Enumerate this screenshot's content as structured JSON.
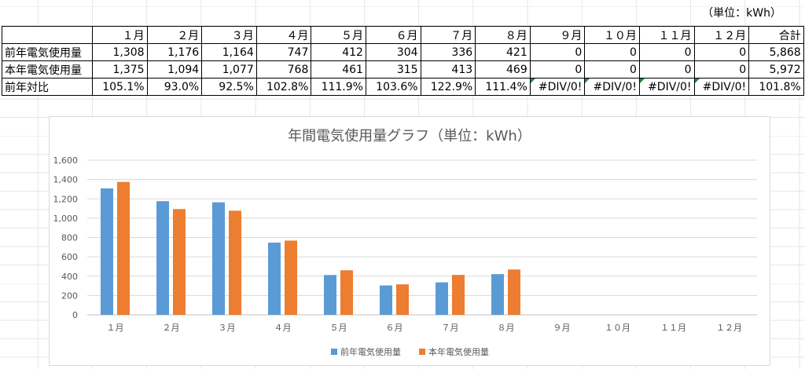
{
  "unit_label": "（単位：kWh）",
  "table": {
    "months": [
      "１月",
      "２月",
      "３月",
      "４月",
      "５月",
      "６月",
      "７月",
      "８月",
      "９月",
      "１０月",
      "１１月",
      "１２月"
    ],
    "total_label": "合計",
    "rows": [
      {
        "label": "前年電気使用量",
        "values": [
          "1,308",
          "1,176",
          "1,164",
          "747",
          "412",
          "304",
          "336",
          "421",
          "0",
          "0",
          "0",
          "0"
        ],
        "total": "5,868"
      },
      {
        "label": "本年電気使用量",
        "values": [
          "1,375",
          "1,094",
          "1,077",
          "768",
          "461",
          "315",
          "413",
          "469",
          "0",
          "0",
          "0",
          "0"
        ],
        "total": "5,972"
      },
      {
        "label": "前年対比",
        "values": [
          "105.1%",
          "93.0%",
          "92.5%",
          "102.8%",
          "111.9%",
          "103.6%",
          "122.9%",
          "111.4%",
          "#DIV/0!",
          "#DIV/0!",
          "#DIV/0!",
          "#DIV/0!"
        ],
        "total": "101.8%"
      }
    ]
  },
  "chart_data": {
    "type": "bar",
    "title": "年間電気使用量グラフ（単位：kWh）",
    "categories": [
      "１月",
      "２月",
      "３月",
      "４月",
      "５月",
      "６月",
      "７月",
      "８月",
      "９月",
      "１０月",
      "１１月",
      "１２月"
    ],
    "series": [
      {
        "name": "前年電気使用量",
        "color": "#5b9bd5",
        "values": [
          1308,
          1176,
          1164,
          747,
          412,
          304,
          336,
          421,
          0,
          0,
          0,
          0
        ]
      },
      {
        "name": "本年電気使用量",
        "color": "#ed7d31",
        "values": [
          1375,
          1094,
          1077,
          768,
          461,
          315,
          413,
          469,
          0,
          0,
          0,
          0
        ]
      }
    ],
    "ylim": [
      0,
      1600
    ],
    "yticks": [
      "0",
      "200",
      "400",
      "600",
      "800",
      "1,000",
      "1,200",
      "1,400",
      "1,600"
    ],
    "grid": true,
    "legend": "bottom"
  }
}
